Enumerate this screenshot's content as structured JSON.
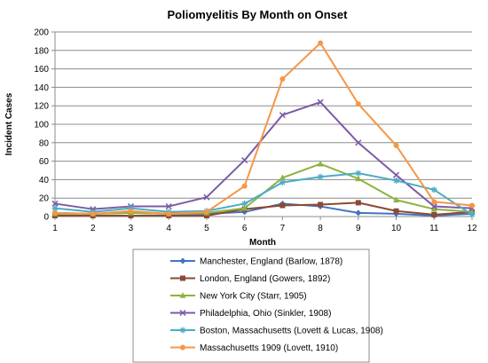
{
  "chart_data": {
    "type": "line",
    "title": "Poliomyelitis By Month on Onset",
    "xlabel": "Month",
    "ylabel": "Incident Cases",
    "x": [
      1,
      2,
      3,
      4,
      5,
      6,
      7,
      8,
      9,
      10,
      11,
      12
    ],
    "xlim": [
      1,
      12
    ],
    "ylim": [
      0,
      200
    ],
    "yticks": [
      0,
      20,
      40,
      60,
      80,
      100,
      120,
      140,
      160,
      180,
      200
    ],
    "grid": true,
    "legend_position": "bottom",
    "series": [
      {
        "name": "Manchester, England (Barlow, 1878)",
        "color": "#4472C4",
        "marker": "diamond",
        "values": [
          4,
          3,
          4,
          3,
          3,
          5,
          14,
          11,
          4,
          3,
          1,
          3
        ]
      },
      {
        "name": "London, England (Gowers, 1892)",
        "color": "#8B4A32",
        "marker": "square",
        "values": [
          1,
          1,
          1,
          1,
          1,
          8,
          12,
          13,
          15,
          6,
          2,
          5
        ]
      },
      {
        "name": "New York City (Starr, 1905)",
        "color": "#8DB33E",
        "marker": "triangle",
        "values": [
          3,
          3,
          4,
          3,
          4,
          9,
          42,
          57,
          41,
          18,
          8,
          5
        ]
      },
      {
        "name": "Philadelphia, Ohio (Sinkler, 1908)",
        "color": "#7B5BA6",
        "marker": "x",
        "values": [
          14,
          8,
          11,
          11,
          21,
          61,
          110,
          124,
          80,
          45,
          11,
          9
        ]
      },
      {
        "name": "Boston, Massachusetts (Lovett & Lucas, 1908)",
        "color": "#4BACC6",
        "marker": "star",
        "values": [
          9,
          5,
          9,
          5,
          6,
          14,
          37,
          43,
          47,
          39,
          29,
          2
        ]
      },
      {
        "name": "Massachusetts 1909 (Lovett, 1910)",
        "color": "#F79646",
        "marker": "circle",
        "values": [
          4,
          3,
          6,
          3,
          5,
          33,
          149,
          188,
          122,
          77,
          16,
          12
        ]
      }
    ]
  }
}
